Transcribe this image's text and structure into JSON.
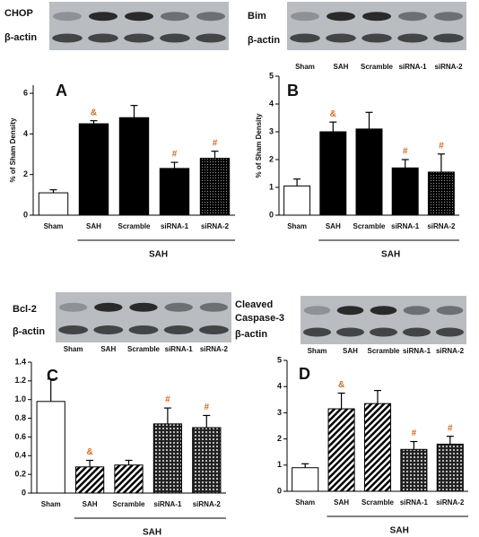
{
  "chart_data": [
    {
      "type": "bar",
      "title": "A",
      "ylabel": "% of Sham Density",
      "blot": {
        "labels": [
          "CHOP",
          "β-actin"
        ]
      },
      "categories": [
        "Sham",
        "SAH",
        "Scramble",
        "siRNA-1",
        "siRNA-2"
      ],
      "values": [
        1.1,
        4.5,
        4.8,
        2.3,
        2.8
      ],
      "errors": [
        0.15,
        0.15,
        0.6,
        0.3,
        0.35
      ],
      "markers": [
        null,
        "&",
        null,
        "#",
        "#"
      ],
      "colors": [
        "#ffffff",
        "#000000",
        "#000000",
        "#000000",
        "#000000"
      ],
      "patterns": [
        "none",
        "none",
        "none",
        "none",
        "dots"
      ],
      "ylim": [
        0,
        6.4
      ],
      "yticks": [
        0,
        2,
        4,
        6
      ],
      "group_label": "SAH"
    },
    {
      "type": "bar",
      "title": "B",
      "ylabel": "% of Sham Density",
      "blot": {
        "labels": [
          "Bim",
          "β-actin"
        ],
        "lanes": [
          "Sham",
          "SAH",
          "Scramble",
          "siRNA-1",
          "siRNA-2"
        ]
      },
      "categories": [
        "Sham",
        "SAH",
        "Scramble",
        "siRNA-1",
        "siRNA-2"
      ],
      "values": [
        1.05,
        3.0,
        3.1,
        1.7,
        1.55
      ],
      "errors": [
        0.25,
        0.35,
        0.6,
        0.3,
        0.65
      ],
      "markers": [
        null,
        "&",
        null,
        "#",
        "#"
      ],
      "colors": [
        "#ffffff",
        "#000000",
        "#000000",
        "#000000",
        "#000000"
      ],
      "patterns": [
        "none",
        "none",
        "none",
        "none",
        "dots"
      ],
      "ylim": [
        0,
        5
      ],
      "yticks": [
        0,
        1,
        2,
        3,
        4,
        5
      ],
      "group_label": "SAH"
    },
    {
      "type": "bar",
      "title": "C",
      "blot": {
        "labels": [
          "Bcl-2",
          "β-actin"
        ],
        "lanes": [
          "Sham",
          "SAH",
          "Scramble",
          "siRNA-1",
          "siRNA-2"
        ]
      },
      "categories": [
        "Sham",
        "SAH",
        "Scramble",
        "siRNA-1",
        "siRNA-2"
      ],
      "values": [
        0.98,
        0.28,
        0.3,
        0.74,
        0.7
      ],
      "errors": [
        0.24,
        0.07,
        0.05,
        0.17,
        0.13
      ],
      "markers": [
        null,
        "&",
        null,
        "#",
        "#"
      ],
      "colors": [
        "#ffffff",
        "#ffffff",
        "#ffffff",
        "#ffffff",
        "#ffffff"
      ],
      "patterns": [
        "none",
        "diag",
        "diag",
        "grid",
        "grid"
      ],
      "ylim": [
        0,
        1.4
      ],
      "yticks": [
        0,
        0.2,
        0.4,
        0.6,
        0.8,
        {
          "value": 1,
          "label": "1.0"
        },
        1.2,
        1.4
      ],
      "group_label": "SAH"
    },
    {
      "type": "bar",
      "title": "D",
      "blot": {
        "labels": [
          "Cleaved",
          "Caspase-3",
          "β-actin"
        ],
        "lanes": [
          "Sham",
          "SAH",
          "Scramble",
          "siRNA-1",
          "siRNA-2"
        ]
      },
      "categories": [
        "Sham",
        "SAH",
        "Scramble",
        "siRNA-1",
        "siRNA-2"
      ],
      "values": [
        0.9,
        3.15,
        3.35,
        1.6,
        1.8
      ],
      "errors": [
        0.15,
        0.6,
        0.5,
        0.3,
        0.3
      ],
      "markers": [
        null,
        "&",
        null,
        "#",
        "#"
      ],
      "colors": [
        "#ffffff",
        "#ffffff",
        "#ffffff",
        "#ffffff",
        "#ffffff"
      ],
      "patterns": [
        "none",
        "diag",
        "diag",
        "grid",
        "grid"
      ],
      "ylim": [
        0,
        5
      ],
      "yticks": [
        0,
        1,
        2,
        3,
        4,
        5
      ],
      "group_label": "SAH"
    }
  ]
}
